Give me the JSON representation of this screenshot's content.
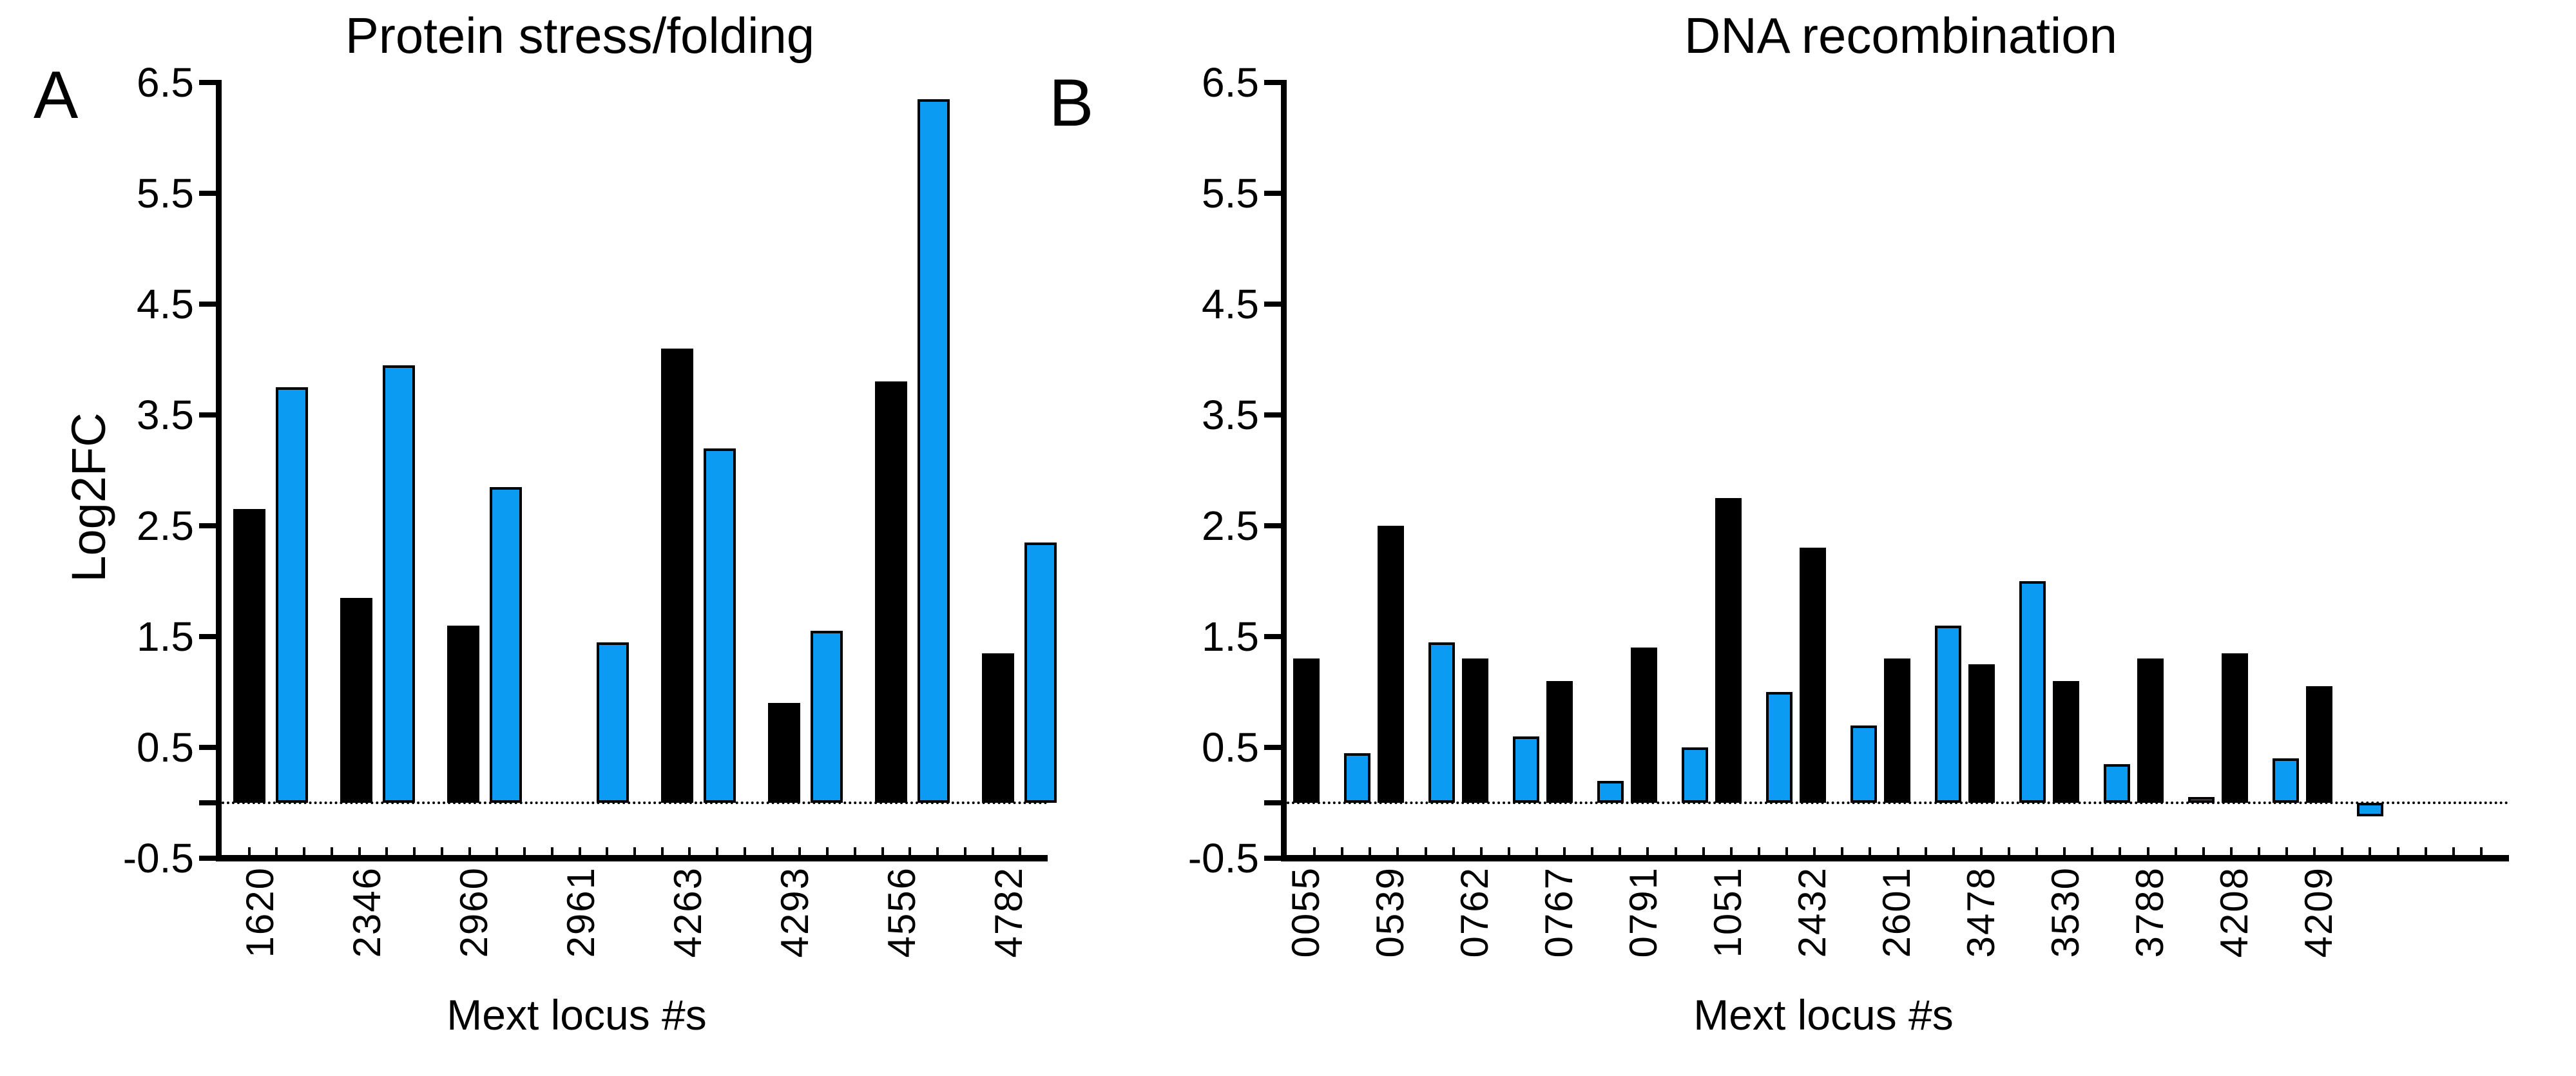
{
  "chart_data": [
    {
      "type": "bar",
      "panel_letter": "A",
      "title": "Protein stress/folding",
      "ylabel": "Log2FC",
      "xlabel": "Mext locus #s",
      "categories": [
        "1620",
        "2346",
        "2960",
        "2961",
        "4263",
        "4293",
        "4556",
        "4782"
      ],
      "series": [
        {
          "name": "black_bars",
          "color": "#000000",
          "values": [
            2.65,
            1.85,
            1.6,
            null,
            4.1,
            0.9,
            3.8,
            1.35
          ]
        },
        {
          "name": "blue_bars",
          "color": "#0C9BF3",
          "values": [
            3.75,
            3.95,
            2.85,
            1.45,
            3.2,
            1.55,
            6.35,
            2.35
          ]
        }
      ],
      "yticks": [
        6.5,
        5.5,
        4.5,
        3.5,
        2.5,
        1.5,
        0.5,
        -0.5
      ],
      "ylim": [
        -0.5,
        6.5
      ],
      "baseline": 0,
      "grid": false,
      "legend": "none",
      "baseline_style": "dotted"
    },
    {
      "type": "bar",
      "panel_letter": "B",
      "title": "DNA recombination",
      "ylabel": "",
      "xlabel": "Mext locus #s",
      "categories": [
        "0055",
        "0539",
        "0762",
        "0767",
        "0791",
        "1051",
        "2432",
        "2601",
        "3478",
        "3530",
        "3788",
        "4208",
        "4209"
      ],
      "series": [
        {
          "name": "black_bars",
          "color": "#000000",
          "values": [
            1.3,
            2.5,
            1.3,
            1.1,
            1.4,
            2.75,
            2.3,
            1.3,
            1.25,
            1.1,
            1.3,
            1.35,
            1.05
          ]
        },
        {
          "name": "blue_bars",
          "color": "#0C9BF3",
          "values": [
            0.45,
            1.45,
            0.6,
            0.2,
            0.5,
            1.0,
            0.7,
            1.6,
            2.0,
            0.35,
            0.05,
            0.4,
            -0.12
          ]
        }
      ],
      "yticks": [
        6.5,
        5.5,
        4.5,
        3.5,
        2.5,
        1.5,
        0.5,
        -0.5
      ],
      "ylim": [
        -0.5,
        6.5
      ],
      "baseline": 0,
      "grid": false,
      "legend": "none",
      "baseline_style": "dotted"
    }
  ]
}
